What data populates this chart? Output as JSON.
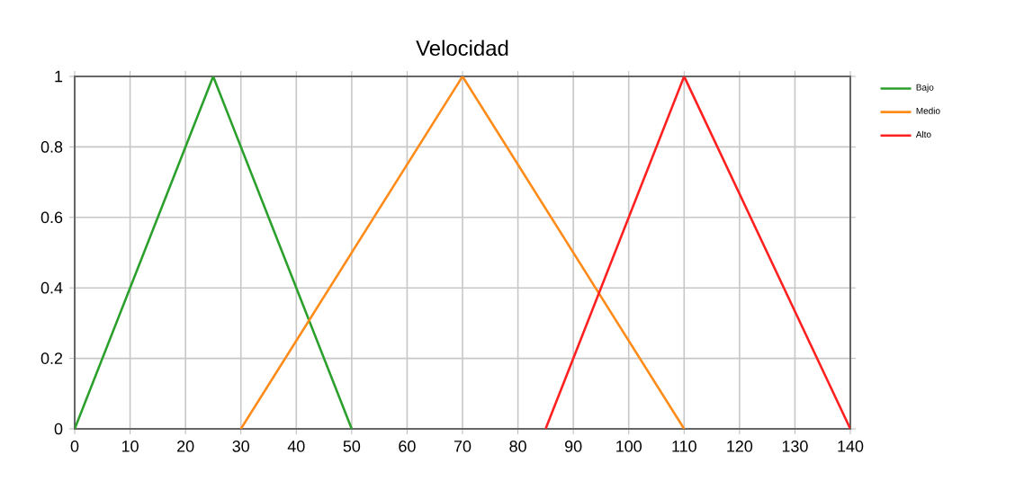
{
  "chart_data": {
    "type": "line",
    "title": "Velocidad",
    "series": [
      {
        "name": "Bajo",
        "color": "#2ca02c",
        "x": [
          0,
          25,
          50
        ],
        "values": [
          0,
          1,
          0
        ]
      },
      {
        "name": "Medio",
        "color": "#ff8c1a",
        "x": [
          30,
          70,
          110
        ],
        "values": [
          0,
          1,
          0
        ]
      },
      {
        "name": "Alto",
        "color": "#ff2020",
        "x": [
          85,
          110,
          140
        ],
        "values": [
          0,
          1,
          0
        ]
      }
    ],
    "xlim": [
      0,
      140
    ],
    "xticks": [
      0,
      10,
      20,
      30,
      40,
      50,
      60,
      70,
      80,
      90,
      100,
      110,
      120,
      130,
      140
    ],
    "ylim": [
      0,
      1
    ],
    "yticks": [
      0,
      0.2,
      0.4,
      0.6,
      0.8,
      1
    ],
    "grid": true,
    "legend": "top right",
    "marker": "none",
    "line_style": "solid"
  }
}
